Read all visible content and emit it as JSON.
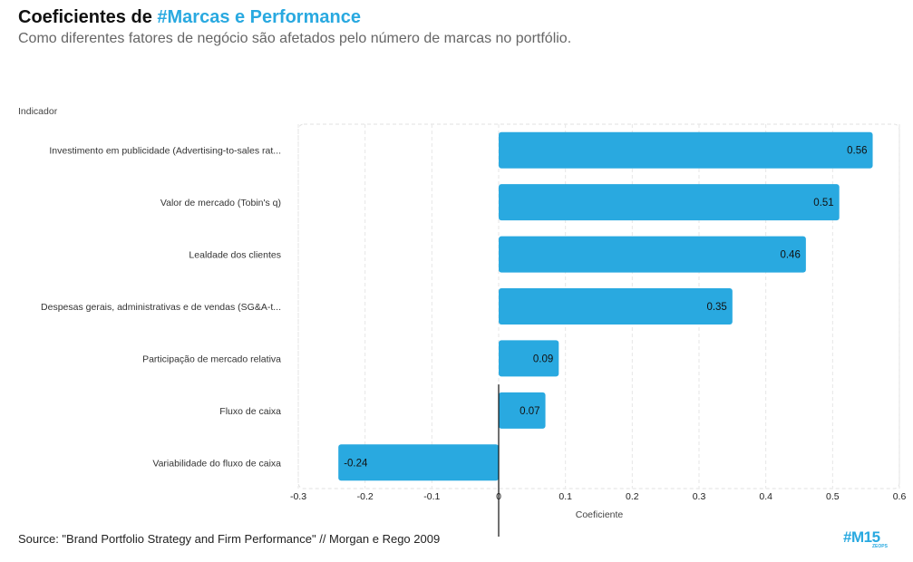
{
  "header": {
    "title_prefix": "Coeficientes de ",
    "title_accent": "#Marcas e Performance",
    "subtitle": "Como diferentes fatores de negócio são afetados pelo número de marcas no portfólio."
  },
  "footer": {
    "source": "Source: \"Brand Portfolio Strategy and Firm Performance\" // Morgan e Rego 2009",
    "logo": "#M15",
    "logo_sub": "ZEOPS"
  },
  "colors": {
    "bar": "#29a9e0",
    "accent": "#29a9e0"
  },
  "chart_data": {
    "type": "bar",
    "orientation": "horizontal",
    "title": "Coeficientes de #Marcas e Performance",
    "xlabel": "Coeficiente",
    "ylabel": "Indicador",
    "xlim": [
      -0.3,
      0.6
    ],
    "xticks": [
      -0.3,
      -0.2,
      -0.1,
      0,
      0.1,
      0.2,
      0.3,
      0.4,
      0.5,
      0.6
    ],
    "xtick_labels": [
      "-0.3",
      "-0.2",
      "-0.1",
      "0",
      "0.1",
      "0.2",
      "0.3",
      "0.4",
      "0.5",
      "0.6"
    ],
    "grid": true,
    "categories": [
      "Investimento em publicidade (Advertising-to-sales rat...",
      "Valor de mercado (Tobin's q)",
      "Lealdade dos clientes",
      "Despesas gerais, administrativas e de vendas (SG&A-t...",
      "Participação de mercado relativa",
      "Fluxo de caixa",
      "Variabilidade do fluxo de caixa"
    ],
    "values": [
      0.56,
      0.51,
      0.46,
      0.35,
      0.09,
      0.07,
      -0.24
    ],
    "value_labels": [
      "0.56",
      "0.51",
      "0.46",
      "0.35",
      "0.09",
      "0.07",
      "-0.24"
    ]
  }
}
